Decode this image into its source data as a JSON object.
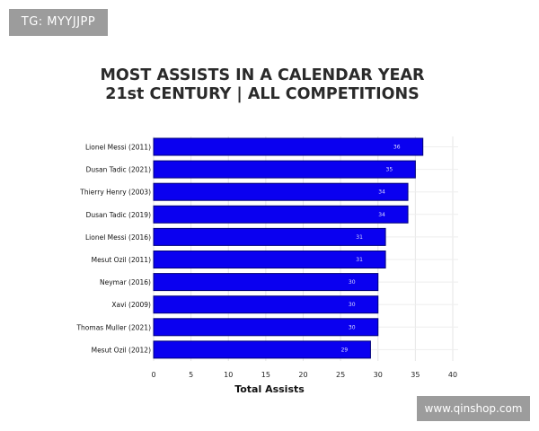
{
  "watermark": {
    "tg_label": "TG: MYYJJPP",
    "site_label": "www.qinshop.com"
  },
  "chart_data": {
    "type": "bar",
    "orientation": "horizontal",
    "title_line1": "MOST ASSISTS IN A CALENDAR YEAR",
    "title_line2": "21st CENTURY | ALL COMPETITIONS",
    "xlabel": "Total Assists",
    "ylabel": "",
    "xlim": [
      0,
      40
    ],
    "xticks": [
      0,
      5,
      10,
      15,
      20,
      25,
      30,
      35,
      40
    ],
    "grid": true,
    "bar_color": "#0a00f0",
    "bar_edge_color": "#00007a",
    "categories": [
      "Lionel Messi (2011)",
      "Dusan Tadic (2021)",
      "Thierry Henry (2003)",
      "Dusan Tadic (2019)",
      "Lionel Messi (2016)",
      "Mesut Ozil (2011)",
      "Neymar (2016)",
      "Xavi (2009)",
      "Thomas Muller (2021)",
      "Mesut Ozil (2012)"
    ],
    "values": [
      36,
      35,
      34,
      34,
      31,
      31,
      30,
      30,
      30,
      29
    ]
  }
}
